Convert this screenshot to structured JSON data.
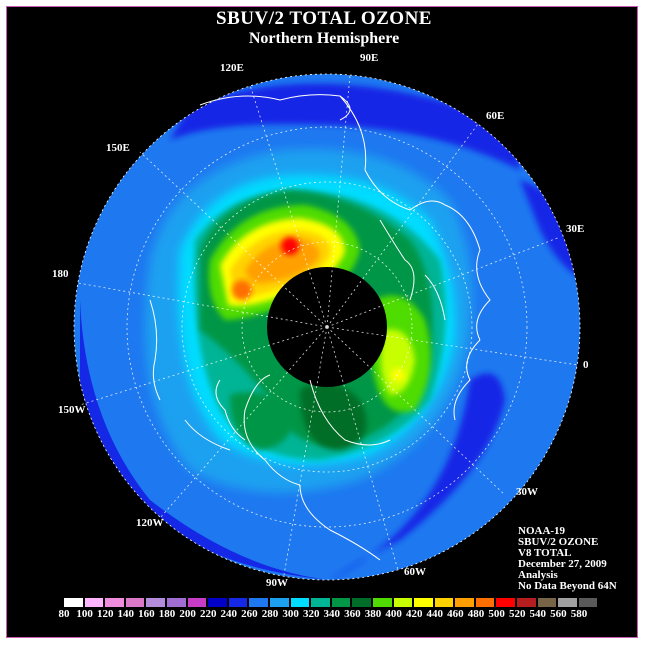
{
  "title": "SBUV/2 TOTAL OZONE",
  "subtitle": "Northern Hemisphere",
  "longitude_labels": {
    "lon_90E": "90E",
    "lon_60E": "60E",
    "lon_30E": "30E",
    "lon_0": "0",
    "lon_30W": "30W",
    "lon_60W": "60W",
    "lon_90W": "90W",
    "lon_120W": "120W",
    "lon_150W": "150W",
    "lon_180": "180",
    "lon_150E": "150E",
    "lon_120E": "120E"
  },
  "info": {
    "satellite": "NOAA-19",
    "product": "SBUV/2 OZONE",
    "version": "V8 TOTAL",
    "date": "December 27, 2009",
    "type": "Analysis",
    "note": "No Data Beyond 64N"
  },
  "colorbar": {
    "labels": [
      "80",
      "100",
      "120",
      "140",
      "160",
      "180",
      "200",
      "220",
      "240",
      "260",
      "280",
      "300",
      "320",
      "340",
      "360",
      "380",
      "400",
      "420",
      "440",
      "460",
      "480",
      "500",
      "520",
      "540",
      "560",
      "580"
    ],
    "colors": [
      "#ffffff",
      "#ffb4ff",
      "#f08cdc",
      "#dc78c8",
      "#b48cdc",
      "#a06ed2",
      "#c83cc8",
      "#0000c8",
      "#1428e6",
      "#1e78f0",
      "#1ea0f0",
      "#00dcff",
      "#00b496",
      "#009646",
      "#006e28",
      "#50dc00",
      "#c8ff00",
      "#ffff00",
      "#ffd200",
      "#ffa000",
      "#ff6e00",
      "#ff0000",
      "#b41e1e",
      "#786446",
      "#a0a0a0",
      "#5a5a5a"
    ]
  },
  "map_colors": {
    "background": "#000000",
    "no_data_cap": "#000000",
    "graticule": "#ffffff",
    "coastline": "#ffffff"
  }
}
